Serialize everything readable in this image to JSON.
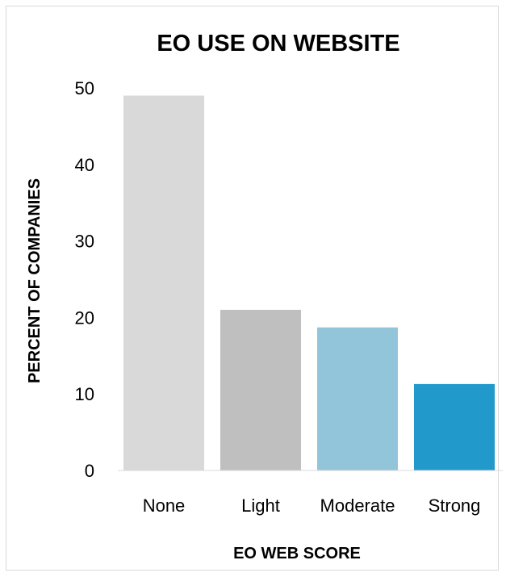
{
  "chart_data": {
    "type": "bar",
    "title": "EO USE ON WEBSITE",
    "xlabel": "EO WEB SCORE",
    "ylabel": "PERCENT OF COMPANIES",
    "categories": [
      "None",
      "Light",
      "Moderate",
      "Strong"
    ],
    "values": [
      49,
      21,
      18.7,
      11.3
    ],
    "colors": [
      "#d9d9d9",
      "#bfbfbf",
      "#92c5da",
      "#2199cb"
    ],
    "ylim": [
      0,
      50
    ],
    "yticks": [
      "0",
      "10",
      "20",
      "30",
      "40",
      "50"
    ],
    "grid": false,
    "legend": "none"
  }
}
